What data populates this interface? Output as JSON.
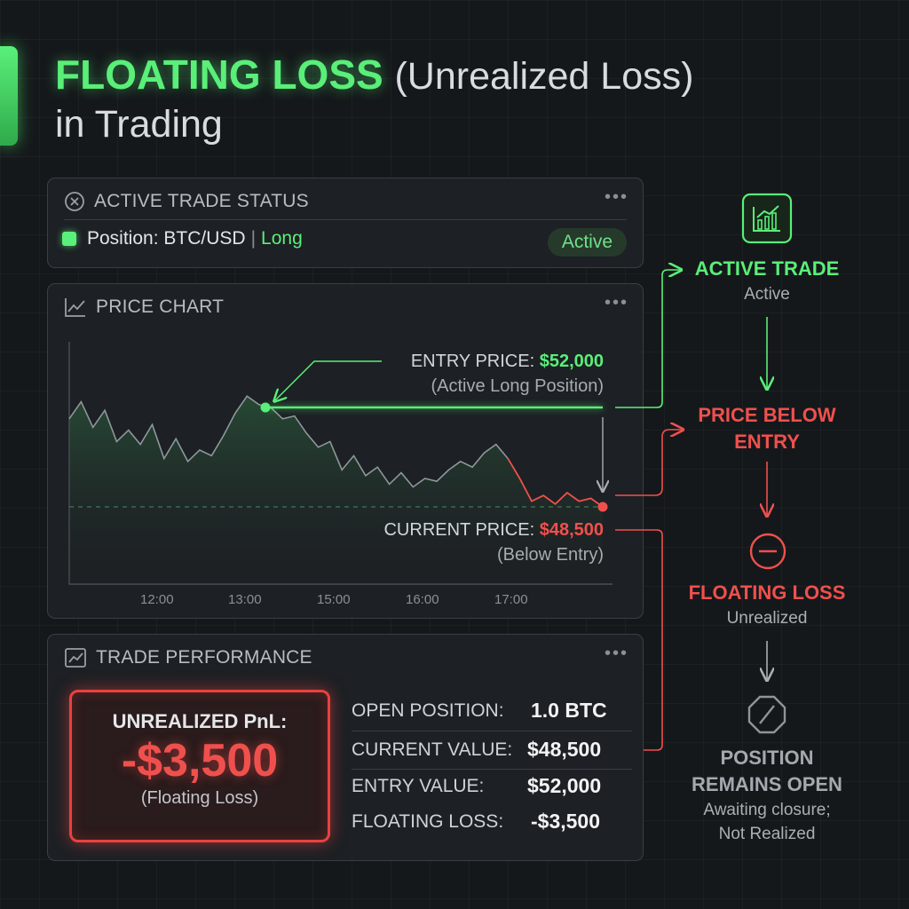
{
  "title": {
    "highlight": "FLOATING LOSS",
    "sub": "(Unrealized Loss)",
    "line2": "in Trading"
  },
  "trade_status": {
    "header": "ACTIVE TRADE STATUS",
    "position_label": "Position: BTC/USD",
    "separator": "|",
    "direction": "Long",
    "badge": "Active",
    "more": "•••"
  },
  "price_chart": {
    "header": "PRICE CHART",
    "more": "•••",
    "entry_label": "ENTRY PRICE:",
    "entry_value": "$52,000",
    "entry_sub": "(Active Long Position)",
    "current_label": "CURRENT PRICE:",
    "current_value": "$48,500",
    "current_sub": "(Below Entry)",
    "x_ticks": [
      "12:00",
      "13:00",
      "15:00",
      "16:00",
      "17:00"
    ]
  },
  "chart_data": {
    "type": "area",
    "x_ticks": [
      "12:00",
      "13:00",
      "15:00",
      "16:00",
      "17:00"
    ],
    "entry_price": 52000,
    "current_price": 48500,
    "series": [
      {
        "values": [
          51600,
          52200,
          51300,
          51900,
          50800,
          51200,
          50700,
          51400,
          50200,
          50900,
          50100,
          50500,
          50300,
          51000,
          51800,
          52400,
          52100,
          52000,
          51600,
          51700,
          51100,
          50600,
          50800,
          49800,
          50300,
          49600,
          49900,
          49300,
          49700,
          49200,
          49500,
          49400,
          49800,
          50100,
          49900,
          50400,
          50700,
          50200,
          49500,
          48700,
          48900,
          48600,
          49000,
          48700,
          48800,
          48500
        ]
      }
    ]
  },
  "performance": {
    "header": "TRADE PERFORMANCE",
    "more": "•••",
    "pnl_label": "UNREALIZED PnL:",
    "pnl_value": "-$3,500",
    "pnl_sub": "(Floating Loss)",
    "stats": [
      {
        "label": "OPEN POSITION:",
        "value": "1.0 BTC"
      },
      {
        "label": "CURRENT VALUE:",
        "value": "$48,500"
      },
      {
        "label": "ENTRY VALUE:",
        "value": "$52,000"
      },
      {
        "label": "FLOATING LOSS:",
        "value": "-$3,500"
      }
    ]
  },
  "flow": {
    "step1": {
      "title": "ACTIVE TRADE",
      "sub": "Active"
    },
    "step2": {
      "title_line1": "PRICE BELOW",
      "title_line2": "ENTRY"
    },
    "step3": {
      "title": "FLOATING LOSS",
      "sub": "Unrealized"
    },
    "step4": {
      "title_line1": "POSITION",
      "title_line2": "REMAINS OPEN",
      "sub_line1": "Awaiting closure;",
      "sub_line2": "Not Realized"
    }
  },
  "colors": {
    "green": "#59ef78",
    "red": "#f0504d",
    "background": "#15181b",
    "panel": "#1d2024"
  },
  "icons": [
    "close-circle-icon",
    "trend-chart-icon",
    "more-icon",
    "growth-chart-icon",
    "minus-circle-icon",
    "blocked-octagon-icon"
  ]
}
